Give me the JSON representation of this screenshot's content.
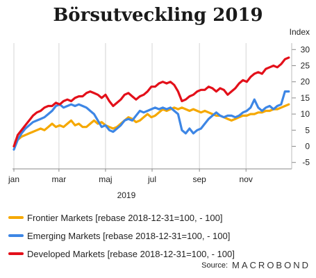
{
  "chart_data": {
    "type": "line",
    "title": "Börsutveckling 2019",
    "ylabel": "Index",
    "xlabel": "2019",
    "ylim": [
      -7,
      32
    ],
    "yticks": [
      -5,
      0,
      5,
      10,
      15,
      20,
      25,
      30
    ],
    "xlim": [
      0,
      362
    ],
    "xticks": [
      {
        "label": "jan",
        "day": 0
      },
      {
        "label": "mar",
        "day": 59
      },
      {
        "label": "maj",
        "day": 120
      },
      {
        "label": "jul",
        "day": 181
      },
      {
        "label": "sep",
        "day": 243
      },
      {
        "label": "nov",
        "day": 304
      }
    ],
    "grid": "vertical",
    "legend_position": "bottom",
    "series": [
      {
        "name": "Frontier Markets [rebase 2018-12-31=100, - 100]",
        "color": "#f5a800",
        "x": [
          0,
          5,
          10,
          15,
          20,
          25,
          30,
          35,
          40,
          45,
          50,
          55,
          60,
          65,
          70,
          75,
          80,
          85,
          90,
          95,
          100,
          105,
          110,
          115,
          120,
          125,
          130,
          135,
          140,
          145,
          150,
          155,
          160,
          165,
          170,
          175,
          180,
          185,
          190,
          195,
          200,
          205,
          210,
          215,
          220,
          225,
          230,
          235,
          240,
          245,
          250,
          255,
          260,
          265,
          270,
          275,
          280,
          285,
          290,
          295,
          300,
          305,
          310,
          315,
          320,
          325,
          330,
          335,
          340,
          345,
          350,
          355,
          360
        ],
        "y": [
          0,
          2,
          3,
          3.5,
          4,
          4.5,
          5,
          5.5,
          5,
          6,
          7,
          6,
          6.5,
          6,
          7,
          8,
          6.5,
          7,
          6,
          6,
          7,
          8,
          7,
          7.5,
          6.5,
          6,
          5.5,
          6,
          7,
          8,
          9,
          8.5,
          7.5,
          8,
          9,
          10,
          9,
          9.5,
          10.5,
          11.5,
          11,
          11.5,
          12,
          11.5,
          12,
          11.5,
          11,
          11.5,
          11,
          10.5,
          11,
          10.5,
          10,
          9.5,
          9.5,
          9,
          8.5,
          8,
          8.5,
          9,
          9.5,
          9.5,
          10,
          10,
          10.5,
          10.5,
          11,
          11,
          11.5,
          11.5,
          12,
          12.5,
          13
        ]
      },
      {
        "name": "Emerging Markets [rebase 2018-12-31=100, - 100]",
        "color": "#3d86e5",
        "x": [
          0,
          5,
          10,
          15,
          20,
          25,
          30,
          35,
          40,
          45,
          50,
          55,
          60,
          65,
          70,
          75,
          80,
          85,
          90,
          95,
          100,
          105,
          110,
          115,
          120,
          125,
          130,
          135,
          140,
          145,
          150,
          155,
          160,
          165,
          170,
          175,
          180,
          185,
          190,
          195,
          200,
          205,
          210,
          215,
          220,
          225,
          230,
          235,
          240,
          245,
          250,
          255,
          260,
          265,
          270,
          275,
          280,
          285,
          290,
          295,
          300,
          305,
          310,
          315,
          320,
          325,
          330,
          335,
          340,
          345,
          350,
          355,
          360
        ],
        "y": [
          -1,
          2,
          4,
          5.5,
          6.5,
          7.5,
          8,
          8.5,
          9,
          10,
          11,
          12.5,
          13,
          12,
          12.5,
          13,
          12.5,
          13,
          12.5,
          12,
          11,
          10,
          8,
          6,
          6.5,
          5,
          4.5,
          5.5,
          6.5,
          8,
          8.5,
          8,
          9.5,
          11,
          10.5,
          11,
          11.5,
          12,
          11.5,
          12,
          11.5,
          12,
          11,
          10,
          5,
          4,
          5.5,
          4,
          5,
          5.5,
          7,
          8.5,
          9.5,
          10.5,
          9.5,
          9,
          9.5,
          9.5,
          9,
          9.5,
          10.5,
          11,
          12,
          14.5,
          12,
          11,
          12,
          12.5,
          11.5,
          12.5,
          13,
          17,
          17
        ]
      },
      {
        "name": "Developed Markets [rebase 2018-12-31=100, - 100]",
        "color": "#e3101a",
        "x": [
          0,
          5,
          10,
          15,
          20,
          25,
          30,
          35,
          40,
          45,
          50,
          55,
          60,
          65,
          70,
          75,
          80,
          85,
          90,
          95,
          100,
          105,
          110,
          115,
          120,
          125,
          130,
          135,
          140,
          145,
          150,
          155,
          160,
          165,
          170,
          175,
          180,
          185,
          190,
          195,
          200,
          205,
          210,
          215,
          220,
          225,
          230,
          235,
          240,
          245,
          250,
          255,
          260,
          265,
          270,
          275,
          280,
          285,
          290,
          295,
          300,
          305,
          310,
          315,
          320,
          325,
          330,
          335,
          340,
          345,
          350,
          355,
          360
        ],
        "y": [
          0,
          3.5,
          5,
          6.5,
          8,
          9.5,
          10.5,
          11,
          12,
          12.5,
          12.5,
          13.5,
          13,
          14,
          14.5,
          14,
          15,
          15.5,
          15.5,
          16.5,
          17,
          16.5,
          16,
          15,
          16,
          14,
          12.5,
          13.5,
          14.5,
          16,
          16.5,
          15.5,
          14.5,
          15.5,
          16,
          17,
          18.5,
          18.5,
          19.5,
          20,
          19.5,
          20,
          19,
          17,
          14,
          14.5,
          15.5,
          16,
          17,
          17.5,
          17.5,
          18.5,
          18,
          17,
          18,
          17.5,
          16,
          17,
          18,
          19.5,
          20.5,
          20,
          21.5,
          22.5,
          23,
          22.5,
          24,
          24.5,
          25,
          24.5,
          25.5,
          27,
          27.5
        ]
      }
    ]
  },
  "source": {
    "label": "Source:",
    "brand": "MACROBOND"
  }
}
